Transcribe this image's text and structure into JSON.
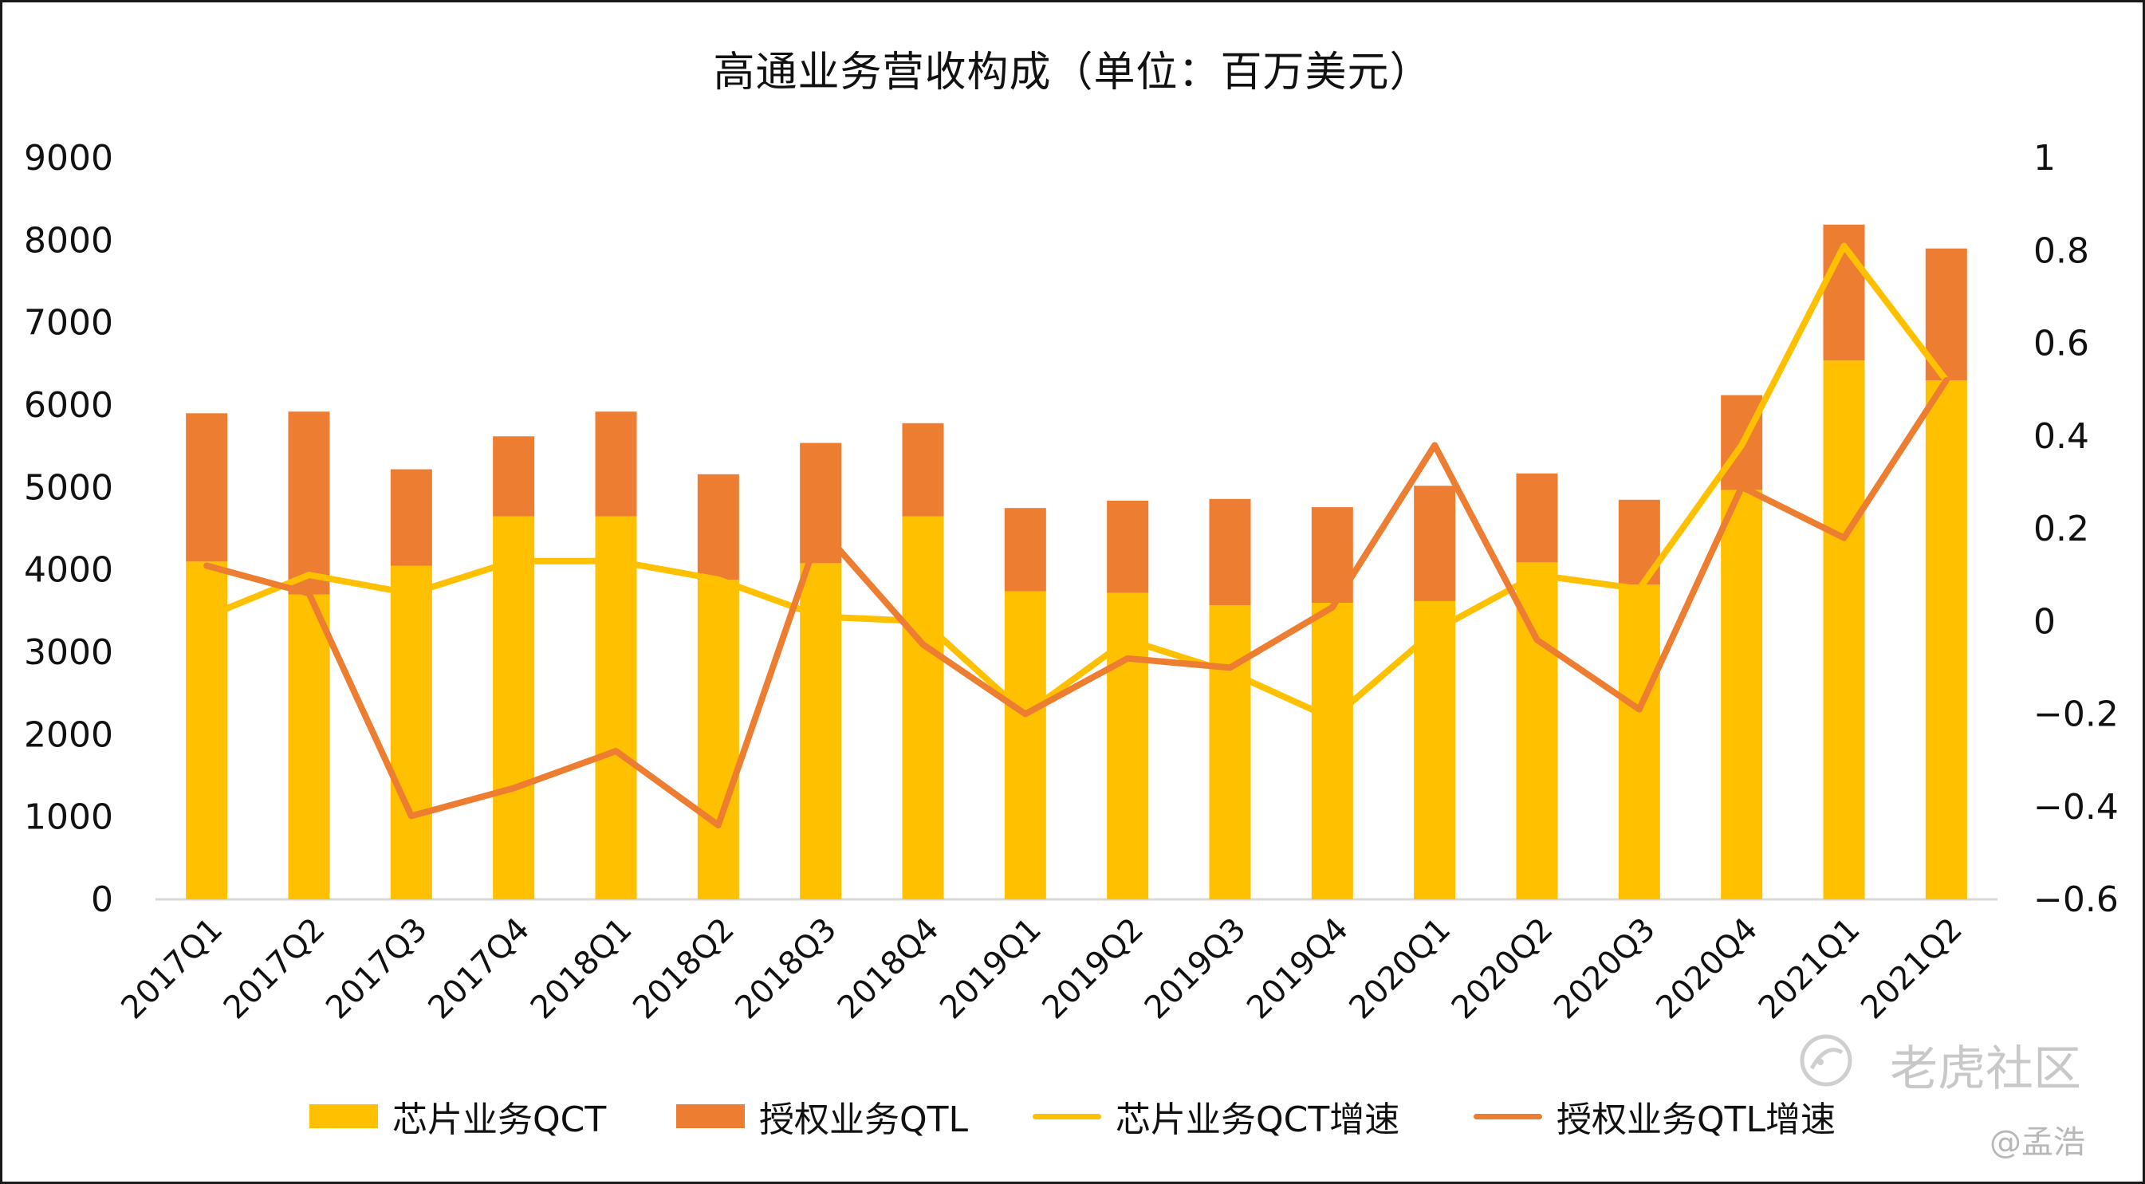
{
  "chart_data": {
    "type": "bar",
    "title": "高通业务营收构成（单位：百万美元）",
    "categories": [
      "2017Q1",
      "2017Q2",
      "2017Q3",
      "2017Q4",
      "2018Q1",
      "2018Q2",
      "2018Q3",
      "2018Q4",
      "2019Q1",
      "2019Q2",
      "2019Q3",
      "2019Q4",
      "2020Q1",
      "2020Q2",
      "2020Q3",
      "2020Q4",
      "2021Q1",
      "2021Q2"
    ],
    "bar_series": [
      {
        "name": "芯片业务QCT",
        "color": "#FFC000",
        "values": [
          4100,
          3700,
          4050,
          4650,
          4650,
          3880,
          4080,
          4650,
          3740,
          3720,
          3570,
          3600,
          3620,
          4090,
          3820,
          4970,
          6540,
          6300
        ]
      },
      {
        "name": "授权业务QTL",
        "color": "#ED7D31",
        "values": [
          1800,
          2220,
          1170,
          970,
          1270,
          1280,
          1460,
          1130,
          1010,
          1120,
          1290,
          1160,
          1400,
          1080,
          1030,
          1150,
          1650,
          1600
        ]
      }
    ],
    "line_series": [
      {
        "name": "芯片业务QCT增速",
        "color": "#FFC000",
        "values": [
          0.01,
          0.1,
          0.06,
          0.13,
          0.13,
          0.09,
          0.01,
          0.0,
          -0.2,
          -0.04,
          -0.11,
          -0.21,
          -0.02,
          0.1,
          0.07,
          0.38,
          0.81,
          0.52
        ]
      },
      {
        "name": "授权业务QTL增速",
        "color": "#ED7D31",
        "values": [
          0.12,
          0.06,
          -0.42,
          -0.36,
          -0.28,
          -0.44,
          0.2,
          -0.05,
          -0.2,
          -0.08,
          -0.1,
          0.03,
          0.38,
          -0.04,
          -0.19,
          0.29,
          0.18,
          0.52
        ]
      }
    ],
    "y_left": {
      "min": 0,
      "max": 9000,
      "ticks": [
        "0",
        "1000",
        "2000",
        "3000",
        "4000",
        "5000",
        "6000",
        "7000",
        "8000",
        "9000"
      ]
    },
    "y_right": {
      "min": -0.6,
      "max": 1,
      "ticks": [
        "−0.6",
        "−0.4",
        "−0.2",
        "0",
        "0.2",
        "0.4",
        "0.6",
        "0.8",
        "1"
      ]
    },
    "grid": false,
    "legend_position": "bottom"
  },
  "watermark": {
    "text": "老虎社区",
    "author": "@孟浩"
  }
}
